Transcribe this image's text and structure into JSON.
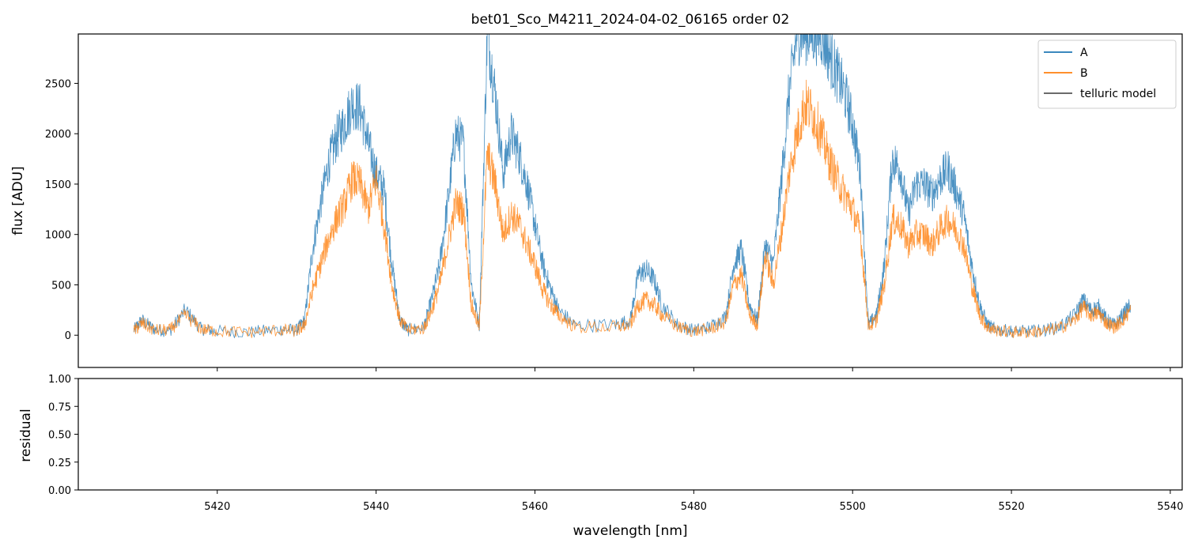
{
  "chart_data": [
    {
      "type": "line",
      "title": "bet01_Sco_M4211_2024-04-02_06165  order 02",
      "xlabel": "",
      "ylabel": "flux [ADU]",
      "xlim": [
        5402.5,
        5541.5
      ],
      "ylim": [
        -320,
        2990
      ],
      "yticks": [
        0,
        500,
        1000,
        1500,
        2000,
        2500
      ],
      "xticks": [
        5420,
        5440,
        5460,
        5480,
        5500,
        5520,
        5540
      ],
      "grid": false,
      "legend": "top-right",
      "colors": {
        "A": "#1f77b4",
        "B": "#ff7f0e",
        "telluric": "#555555"
      },
      "series": [
        {
          "name": "A",
          "x": [
            5409.5,
            5410.5,
            5412,
            5414,
            5416,
            5418,
            5420,
            5424,
            5428,
            5430,
            5431,
            5432,
            5433,
            5434,
            5435,
            5436,
            5437,
            5438,
            5439,
            5440,
            5441,
            5442,
            5443,
            5444,
            5446,
            5447,
            5448,
            5449,
            5450,
            5451,
            5452,
            5453,
            5454,
            5455,
            5456,
            5457,
            5458,
            5459,
            5460,
            5461,
            5462,
            5463,
            5465,
            5470,
            5472,
            5473,
            5474,
            5475,
            5476,
            5478,
            5480,
            5482,
            5484,
            5485,
            5486,
            5487,
            5488,
            5489,
            5490,
            5491,
            5492,
            5493,
            5494,
            5495,
            5496,
            5497,
            5498,
            5499,
            5500,
            5501,
            5502,
            5503,
            5504,
            5505,
            5506,
            5507,
            5508,
            5509,
            5510,
            5511,
            5512,
            5513,
            5514,
            5515,
            5516,
            5517,
            5518,
            5520,
            5522,
            5524,
            5526,
            5528,
            5529,
            5530,
            5531,
            5532,
            5533,
            5534,
            5535
          ],
          "values": [
            50,
            150,
            60,
            40,
            250,
            60,
            40,
            30,
            60,
            50,
            150,
            850,
            1300,
            1700,
            1950,
            2100,
            2300,
            2250,
            1900,
            1600,
            1450,
            700,
            150,
            50,
            80,
            350,
            700,
            1300,
            2000,
            1900,
            500,
            100,
            3000,
            2400,
            1600,
            2000,
            1800,
            1500,
            1100,
            700,
            450,
            250,
            100,
            100,
            150,
            600,
            650,
            550,
            300,
            100,
            50,
            80,
            180,
            700,
            850,
            300,
            150,
            900,
            700,
            1500,
            2400,
            3000,
            3000,
            3000,
            3000,
            2800,
            2600,
            2400,
            2100,
            1600,
            100,
            200,
            700,
            1750,
            1650,
            1200,
            1500,
            1500,
            1400,
            1550,
            1650,
            1450,
            1200,
            700,
            300,
            100,
            60,
            40,
            40,
            50,
            80,
            200,
            350,
            250,
            280,
            150,
            100,
            200,
            300
          ]
        },
        {
          "name": "B",
          "x": [
            5409.5,
            5410.5,
            5412,
            5414,
            5416,
            5418,
            5420,
            5424,
            5428,
            5430,
            5431,
            5432,
            5433,
            5434,
            5435,
            5436,
            5437,
            5438,
            5439,
            5440,
            5441,
            5442,
            5443,
            5444,
            5446,
            5447,
            5448,
            5449,
            5450,
            5451,
            5452,
            5453,
            5454,
            5455,
            5456,
            5457,
            5458,
            5459,
            5460,
            5461,
            5462,
            5463,
            5465,
            5470,
            5472,
            5473,
            5474,
            5475,
            5476,
            5478,
            5480,
            5482,
            5484,
            5485,
            5486,
            5487,
            5488,
            5489,
            5490,
            5491,
            5492,
            5493,
            5494,
            5495,
            5496,
            5497,
            5498,
            5499,
            5500,
            5501,
            5502,
            5503,
            5504,
            5505,
            5506,
            5507,
            5508,
            5509,
            5510,
            5511,
            5512,
            5513,
            5514,
            5515,
            5516,
            5517,
            5518,
            5520,
            5522,
            5524,
            5526,
            5528,
            5529,
            5530,
            5531,
            5532,
            5533,
            5534,
            5535
          ],
          "values": [
            40,
            120,
            50,
            50,
            200,
            60,
            40,
            30,
            50,
            40,
            100,
            450,
            700,
            950,
            1150,
            1300,
            1550,
            1500,
            1250,
            1550,
            1100,
            500,
            150,
            50,
            70,
            250,
            500,
            900,
            1300,
            1250,
            300,
            80,
            1800,
            1500,
            1000,
            1200,
            1100,
            900,
            700,
            450,
            300,
            200,
            80,
            80,
            100,
            300,
            350,
            300,
            200,
            80,
            40,
            60,
            130,
            500,
            600,
            200,
            100,
            800,
            500,
            1000,
            1600,
            2000,
            2300,
            2200,
            2000,
            1750,
            1550,
            1400,
            1250,
            1000,
            80,
            150,
            500,
            1150,
            1100,
            900,
            1000,
            1000,
            900,
            1050,
            1150,
            1050,
            900,
            500,
            200,
            80,
            50,
            30,
            30,
            40,
            70,
            150,
            280,
            200,
            220,
            120,
            80,
            150,
            250
          ]
        },
        {
          "name": "telluric model",
          "x": [],
          "values": []
        }
      ]
    },
    {
      "type": "line",
      "title": "",
      "xlabel": "wavelength [nm]",
      "ylabel": "residual",
      "xlim": [
        5402.5,
        5541.5
      ],
      "ylim": [
        0,
        1
      ],
      "yticks": [
        "0.00",
        "0.25",
        "0.50",
        "0.75",
        "1.00"
      ],
      "xticks": [
        5420,
        5440,
        5460,
        5480,
        5500,
        5520,
        5540
      ],
      "series": []
    }
  ]
}
